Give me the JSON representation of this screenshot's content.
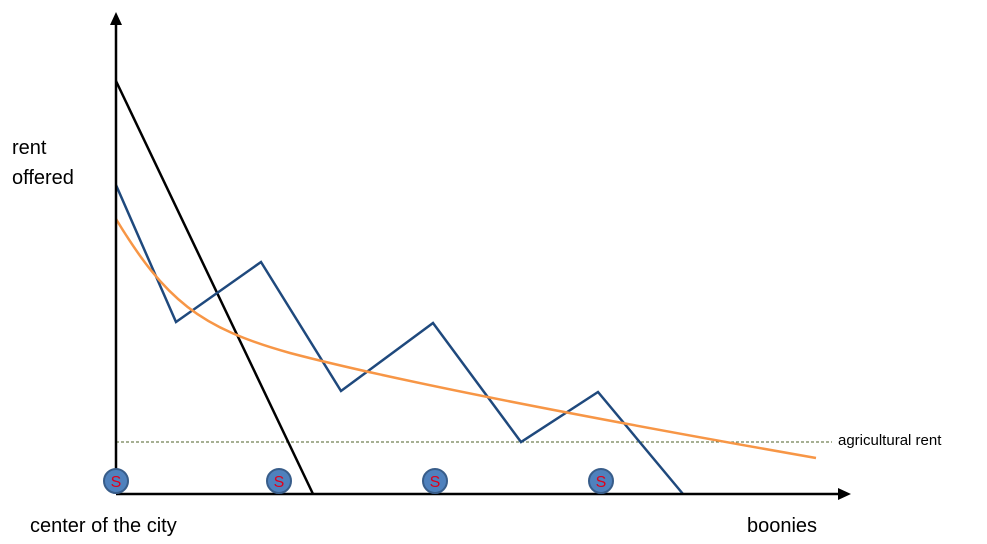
{
  "labels": {
    "y_axis_line1": "rent",
    "y_axis_line2": "offered",
    "x_axis_left": "center of the city",
    "x_axis_right": "boonies",
    "agricultural": "agricultural rent"
  },
  "station": {
    "letter": "S",
    "fill_color": "#4f81bd",
    "stroke_color": "#385d8a",
    "text_color": "#e0001b"
  },
  "colors": {
    "axis": "#000000",
    "steep_line": "#000000",
    "sawtooth": "#1f497d",
    "smooth_curve": "#f79646",
    "agricultural_line": "#4f6228"
  },
  "icons": {
    "y_axis_arrow": "arrow-up-icon",
    "x_axis_arrow": "arrow-right-icon",
    "station": "subway-station-icon"
  }
}
